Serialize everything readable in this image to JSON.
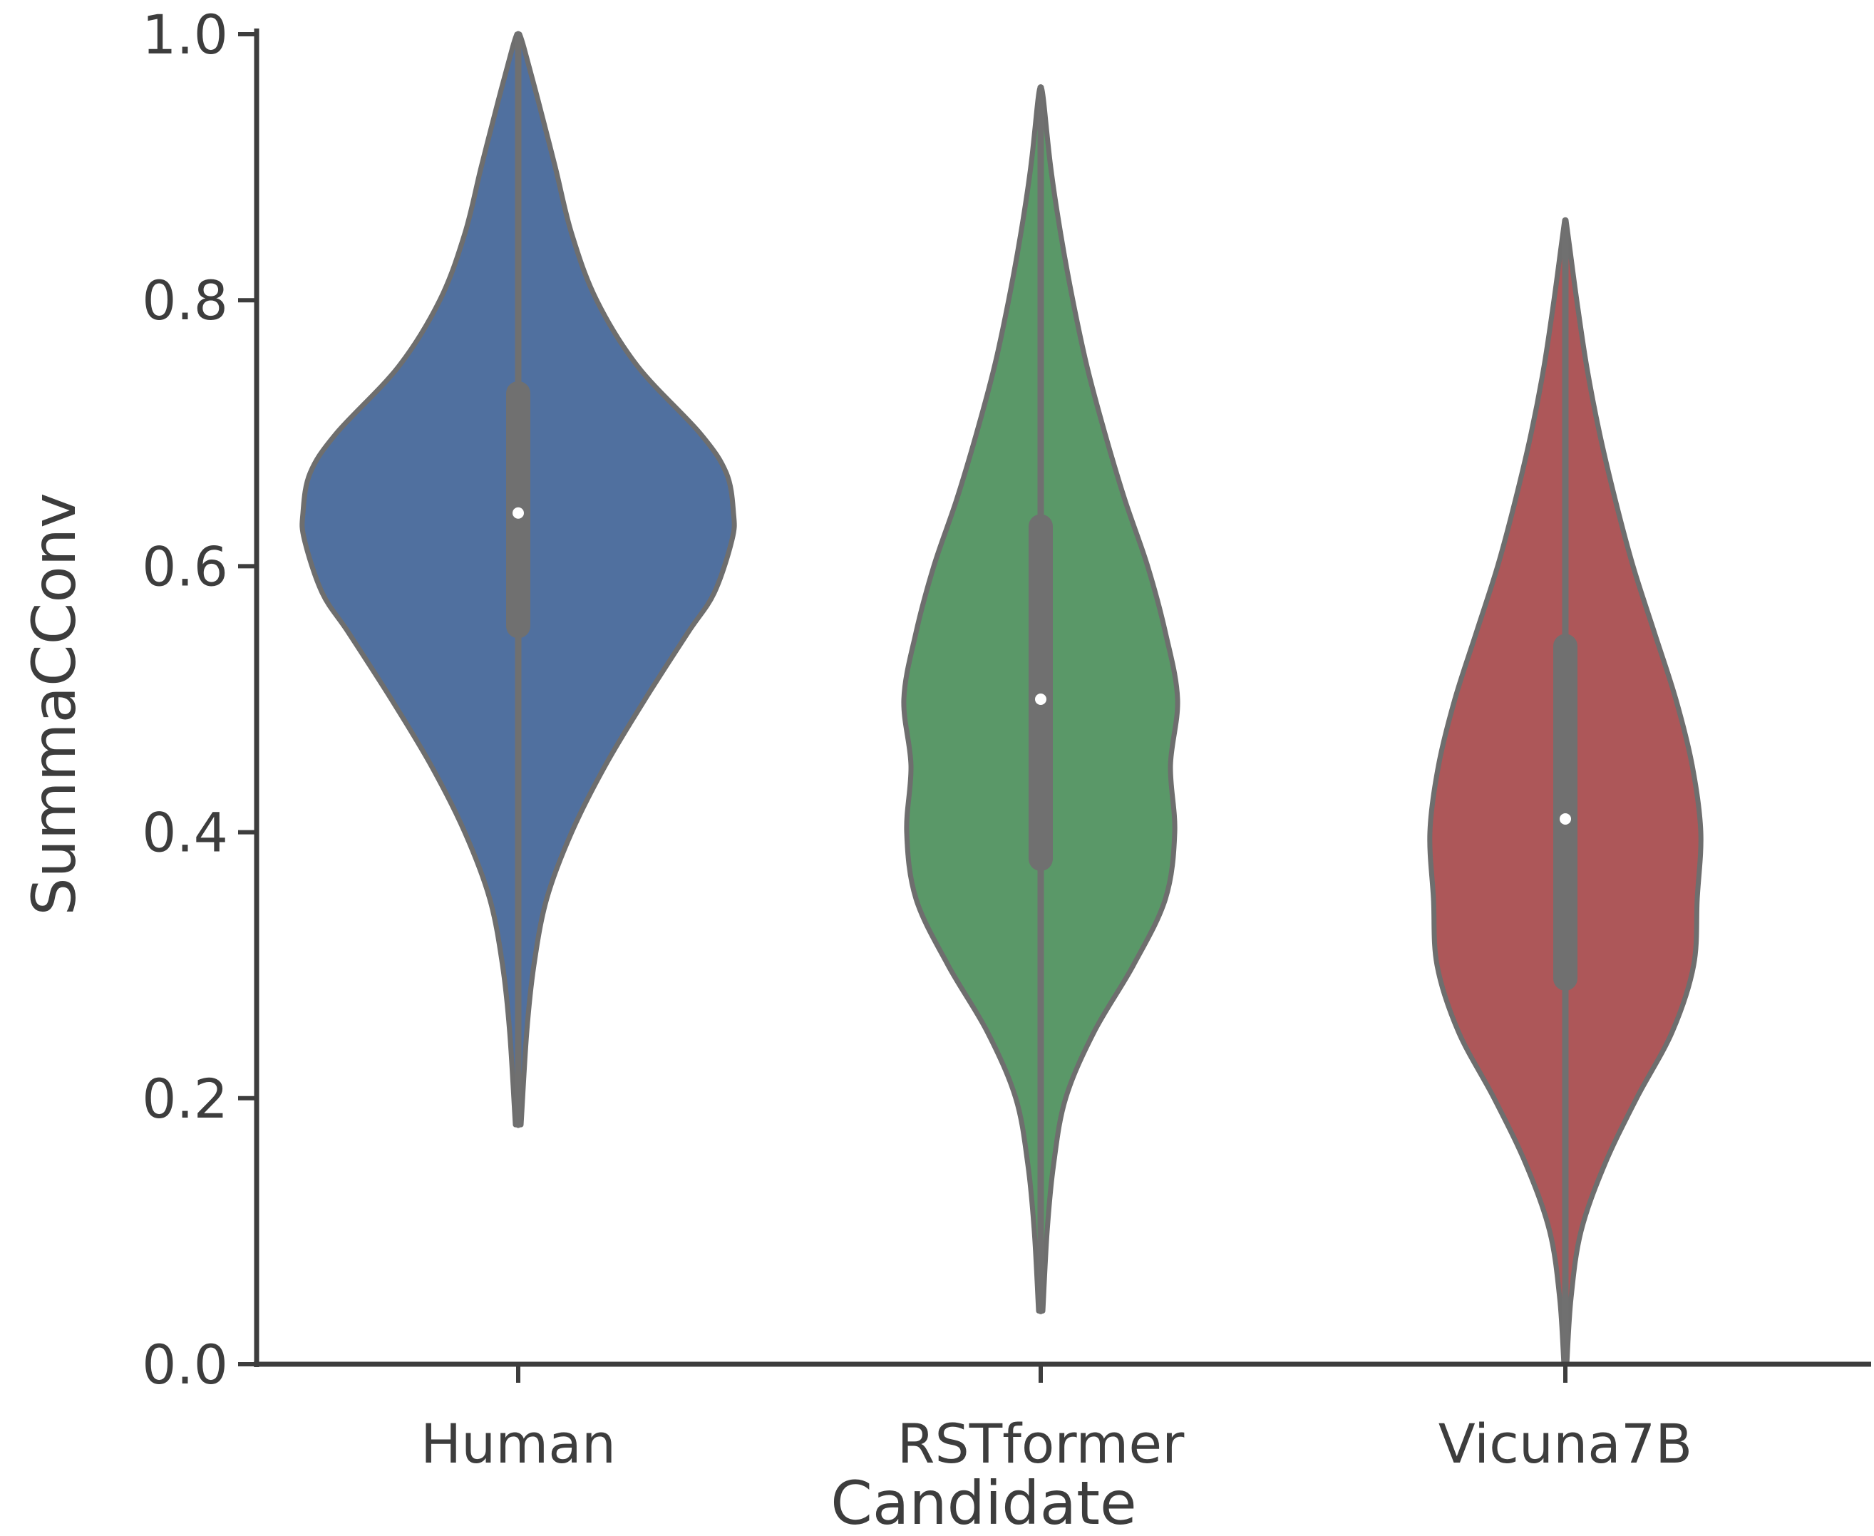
{
  "chart_data": {
    "type": "violin",
    "xlabel": "Candidate",
    "ylabel": "SummaCConv",
    "ylim": [
      0,
      1
    ],
    "yticks": [
      "0.0",
      "0.2",
      "0.4",
      "0.6",
      "0.8",
      "1.0"
    ],
    "categories": [
      "Human",
      "RSTformer",
      "Vicuna7B"
    ],
    "grid": false,
    "legend": "none",
    "colors": {
      "axis": "#3d3d3d",
      "outline": "#6e6e6e",
      "inner": "#707070",
      "median": "#ffffff",
      "series": [
        "#50709f",
        "#5a9868",
        "#ad5759"
      ]
    },
    "violins": [
      {
        "category": "Human",
        "min": 0.18,
        "q1": 0.555,
        "median": 0.64,
        "q3": 0.73,
        "max": 1.0,
        "profile": [
          [
            0.18,
            0.004
          ],
          [
            0.25,
            0.012
          ],
          [
            0.3,
            0.022
          ],
          [
            0.35,
            0.04
          ],
          [
            0.4,
            0.075
          ],
          [
            0.45,
            0.122
          ],
          [
            0.5,
            0.178
          ],
          [
            0.55,
            0.238
          ],
          [
            0.58,
            0.275
          ],
          [
            0.62,
            0.3
          ],
          [
            0.64,
            0.302
          ],
          [
            0.67,
            0.292
          ],
          [
            0.7,
            0.255
          ],
          [
            0.75,
            0.168
          ],
          [
            0.8,
            0.11
          ],
          [
            0.85,
            0.075
          ],
          [
            0.9,
            0.052
          ],
          [
            0.95,
            0.028
          ],
          [
            0.99,
            0.008
          ],
          [
            1.0,
            0.002
          ]
        ]
      },
      {
        "category": "RSTformer",
        "min": 0.04,
        "q1": 0.38,
        "median": 0.5,
        "q3": 0.63,
        "max": 0.96,
        "profile": [
          [
            0.04,
            0.003
          ],
          [
            0.1,
            0.009
          ],
          [
            0.15,
            0.018
          ],
          [
            0.2,
            0.035
          ],
          [
            0.25,
            0.075
          ],
          [
            0.3,
            0.13
          ],
          [
            0.35,
            0.175
          ],
          [
            0.4,
            0.188
          ],
          [
            0.45,
            0.182
          ],
          [
            0.5,
            0.192
          ],
          [
            0.55,
            0.175
          ],
          [
            0.6,
            0.15
          ],
          [
            0.65,
            0.118
          ],
          [
            0.7,
            0.09
          ],
          [
            0.75,
            0.065
          ],
          [
            0.8,
            0.045
          ],
          [
            0.85,
            0.028
          ],
          [
            0.9,
            0.014
          ],
          [
            0.95,
            0.004
          ],
          [
            0.96,
            0.001
          ]
        ]
      },
      {
        "category": "Vicuna7B",
        "min": 0.0,
        "q1": 0.29,
        "median": 0.41,
        "q3": 0.54,
        "max": 0.86,
        "profile": [
          [
            0.0,
            0.002
          ],
          [
            0.05,
            0.008
          ],
          [
            0.1,
            0.022
          ],
          [
            0.15,
            0.055
          ],
          [
            0.2,
            0.1
          ],
          [
            0.25,
            0.15
          ],
          [
            0.3,
            0.18
          ],
          [
            0.35,
            0.185
          ],
          [
            0.4,
            0.19
          ],
          [
            0.45,
            0.178
          ],
          [
            0.5,
            0.155
          ],
          [
            0.55,
            0.125
          ],
          [
            0.6,
            0.095
          ],
          [
            0.65,
            0.07
          ],
          [
            0.7,
            0.048
          ],
          [
            0.75,
            0.03
          ],
          [
            0.8,
            0.016
          ],
          [
            0.84,
            0.006
          ],
          [
            0.86,
            0.001
          ]
        ]
      }
    ]
  }
}
